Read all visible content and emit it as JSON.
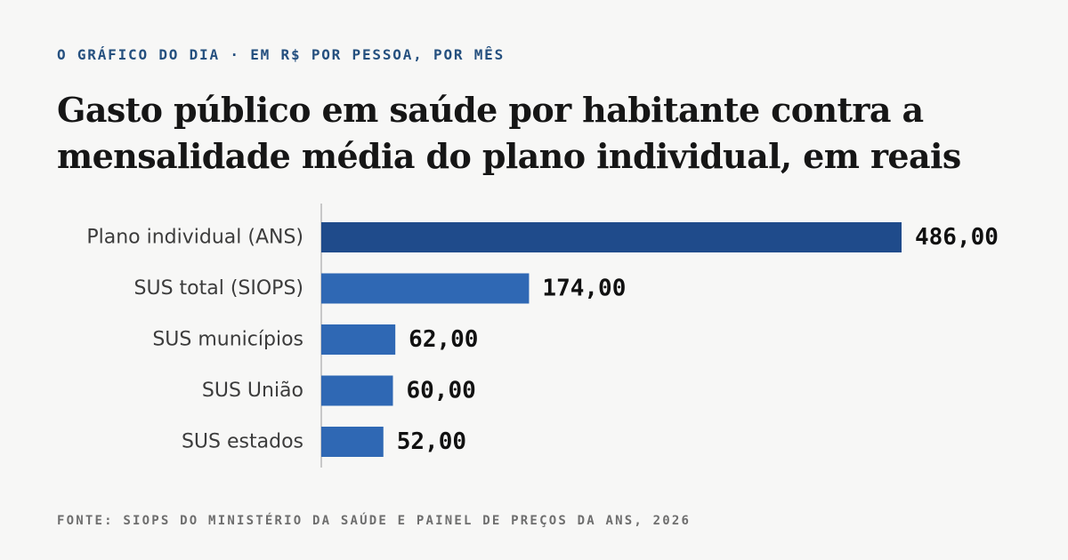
{
  "header": {
    "kicker": "O GRÁFICO DO DIA · EM R$ POR PESSOA, POR MÊS",
    "title": "Gasto público em saúde por habitante contra a mensalidade média do plano individual, em reais"
  },
  "footer": {
    "source": "FONTE: SIOPS DO MINISTÉRIO DA SAÚDE E PAINEL DE PREÇOS DA ANS, 2026"
  },
  "colors": {
    "highlight_bar": "#1f4b8b",
    "bar": "#2f68b4",
    "axis": "#b8b8b8"
  },
  "chart_data": {
    "type": "bar",
    "orientation": "horizontal",
    "categories": [
      "Plano individual (ANS)",
      "SUS total (SIOPS)",
      "SUS municípios",
      "SUS União",
      "SUS estados"
    ],
    "values": [
      486.0,
      174.0,
      62.0,
      60.0,
      52.0
    ],
    "value_labels": [
      "486,00",
      "174,00",
      "62,00",
      "60,00",
      "52,00"
    ],
    "highlight_index": 0,
    "xlim": [
      0,
      486
    ],
    "title": "Gasto público em saúde por habitante contra a mensalidade média do plano individual, em reais",
    "xlabel": "",
    "ylabel": "",
    "grid": false,
    "legend": "none"
  }
}
